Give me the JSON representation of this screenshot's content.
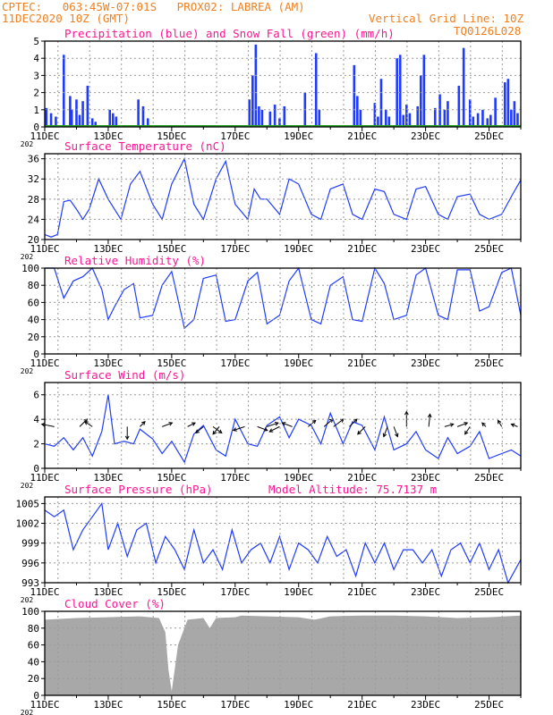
{
  "header": {
    "line1_left": "CPTEC:   063:45W-07:01S   PROX02: LABREA (AM)",
    "line2_left": "11DEC2020 10Z (GMT)",
    "line2_right": "Vertical Grid Line: 10Z",
    "line3_right": "TQ0126L028"
  },
  "colors": {
    "title": "#ff1493",
    "line": "#1f3bff",
    "bar": "#1f3bff",
    "snow": "#22a022",
    "cloud": "#a8a8a8",
    "header": "#f08020"
  },
  "x_axis": {
    "labels": [
      "11DEC",
      "13DEC",
      "15DEC",
      "17DEC",
      "19DEC",
      "21DEC",
      "23DEC",
      "25DEC"
    ],
    "year_stub": "202"
  },
  "chart_data": [
    {
      "type": "bar",
      "title": "Precipitation (blue) and Snow Fall (green) (mm/h)",
      "yticks": [
        "0",
        "1",
        "2",
        "3",
        "4",
        "5"
      ],
      "ylim": [
        0,
        5
      ],
      "series": [
        {
          "name": "Precipitation (blue)",
          "x": [
            0.05,
            0.2,
            0.35,
            0.6,
            0.8,
            0.85,
            1.0,
            1.1,
            1.2,
            1.35,
            1.5,
            1.6,
            2.05,
            2.15,
            2.25,
            2.95,
            3.1,
            3.25,
            6.45,
            6.55,
            6.65,
            6.75,
            6.85,
            7.1,
            7.25,
            7.4,
            7.55,
            8.2,
            8.55,
            8.65,
            9.75,
            9.85,
            9.95,
            10.4,
            10.5,
            10.6,
            10.75,
            10.85,
            11.1,
            11.2,
            11.3,
            11.4,
            11.5,
            11.75,
            11.85,
            11.95,
            12.3,
            12.45,
            12.6,
            12.7,
            13.05,
            13.2,
            13.4,
            13.5,
            13.65,
            13.8,
            13.95,
            14.05,
            14.2,
            14.5,
            14.6,
            14.7,
            14.8,
            14.9
          ],
          "values": [
            1.1,
            0.8,
            0.6,
            4.2,
            1.8,
            1.0,
            1.6,
            0.7,
            1.5,
            2.4,
            0.5,
            0.3,
            1.0,
            0.8,
            0.6,
            1.6,
            1.2,
            0.5,
            1.6,
            3.0,
            4.8,
            1.2,
            1.0,
            0.9,
            1.3,
            0.5,
            1.2,
            2.0,
            4.3,
            1.0,
            3.6,
            1.8,
            1.0,
            1.4,
            0.6,
            2.8,
            1.0,
            0.6,
            4.0,
            4.2,
            0.7,
            1.3,
            0.8,
            1.2,
            3.0,
            4.2,
            1.1,
            1.9,
            1.0,
            1.5,
            2.4,
            4.6,
            1.6,
            0.6,
            0.8,
            1.0,
            0.5,
            0.7,
            1.7,
            2.6,
            2.8,
            1.0,
            1.5,
            0.8
          ]
        },
        {
          "name": "Snow Fall (green)",
          "x": [
            0,
            15
          ],
          "values": [
            0,
            0
          ]
        }
      ]
    },
    {
      "type": "line",
      "title": "Surface Temperature (nC)",
      "yticks": [
        "20",
        "24",
        "28",
        "32",
        "36"
      ],
      "ylim": [
        20,
        37
      ],
      "x": [
        0,
        0.2,
        0.4,
        0.6,
        0.8,
        1,
        1.2,
        1.4,
        1.7,
        2,
        2.4,
        2.7,
        3,
        3.4,
        3.7,
        4,
        4.4,
        4.7,
        5,
        5.4,
        5.7,
        6,
        6.4,
        6.6,
        6.8,
        7,
        7.4,
        7.7,
        8,
        8.4,
        8.7,
        9,
        9.4,
        9.7,
        10,
        10.4,
        10.7,
        11,
        11.4,
        11.7,
        12,
        12.4,
        12.7,
        13,
        13.4,
        13.7,
        14,
        14.4,
        14.7,
        15
      ],
      "values": [
        21,
        20.5,
        21,
        27.5,
        27.8,
        26,
        24,
        26,
        32,
        28,
        24,
        31,
        33.5,
        27,
        24,
        31,
        36,
        27,
        24,
        32,
        35.5,
        27,
        24,
        30,
        28,
        28,
        25,
        32,
        31,
        25,
        24,
        30,
        31,
        25,
        24,
        30,
        29.5,
        25,
        24,
        30,
        30.5,
        25,
        24,
        28.5,
        29,
        25,
        24,
        25,
        28.5,
        31.8
      ]
    },
    {
      "type": "line",
      "title": "Relative Humidity (%)",
      "yticks": [
        "0",
        "20",
        "40",
        "60",
        "80",
        "100"
      ],
      "ylim": [
        0,
        100
      ],
      "x": [
        0,
        0.3,
        0.6,
        0.9,
        1.2,
        1.5,
        1.8,
        2,
        2.2,
        2.5,
        2.8,
        3,
        3.4,
        3.7,
        4,
        4.4,
        4.7,
        5,
        5.4,
        5.7,
        6,
        6.4,
        6.7,
        7,
        7.4,
        7.7,
        8,
        8.4,
        8.7,
        9,
        9.4,
        9.7,
        10,
        10.4,
        10.7,
        11,
        11.4,
        11.7,
        12,
        12.4,
        12.7,
        13,
        13.4,
        13.7,
        14,
        14.4,
        14.7,
        15
      ],
      "values": [
        100,
        100,
        65,
        85,
        90,
        100,
        75,
        40,
        55,
        75,
        82,
        42,
        45,
        80,
        96,
        30,
        40,
        88,
        92,
        38,
        40,
        85,
        95,
        35,
        45,
        85,
        100,
        40,
        35,
        80,
        90,
        40,
        38,
        100,
        82,
        40,
        45,
        92,
        100,
        45,
        40,
        98,
        98,
        50,
        55,
        95,
        100,
        45
      ]
    },
    {
      "type": "line",
      "title": "Surface Wind (m/s)",
      "yticks": [
        "0",
        "2",
        "4",
        "6"
      ],
      "ylim": [
        0,
        7
      ],
      "x": [
        0,
        0.3,
        0.6,
        0.9,
        1.2,
        1.5,
        1.8,
        2,
        2.2,
        2.5,
        2.8,
        3,
        3.4,
        3.7,
        4,
        4.4,
        4.7,
        5,
        5.4,
        5.7,
        6,
        6.4,
        6.7,
        7,
        7.4,
        7.7,
        8,
        8.4,
        8.7,
        9,
        9.4,
        9.7,
        10,
        10.4,
        10.7,
        11,
        11.4,
        11.7,
        12,
        12.4,
        12.7,
        13,
        13.4,
        13.7,
        14,
        14.4,
        14.7,
        15
      ],
      "values": [
        2,
        1.8,
        2.5,
        1.5,
        2.5,
        1,
        3,
        6,
        2,
        2.2,
        2,
        3.2,
        2.4,
        1.2,
        2.2,
        0.5,
        2.8,
        3.5,
        1.5,
        1,
        4,
        2,
        1.8,
        3.5,
        4.2,
        2.5,
        4,
        3.5,
        2,
        4.5,
        2,
        3.8,
        3.5,
        1.5,
        4.2,
        1.5,
        2,
        3,
        1.5,
        0.8,
        2.5,
        1.2,
        1.8,
        3,
        0.8,
        1.2,
        1.5,
        1
      ],
      "arrows": {
        "x": [
          0.3,
          1.1,
          1.5,
          2.6,
          3.0,
          3.7,
          4.5,
          5.0,
          5.3,
          5.5,
          6.3,
          6.7,
          7.0,
          7.4,
          7.8,
          8.3,
          8.8,
          9.1,
          9.6,
          10.1,
          10.8,
          11.0,
          11.4,
          12.1,
          12.6,
          13.0,
          13.4,
          13.9,
          14.4,
          14.9
        ],
        "u": [
          -1,
          0.6,
          -0.6,
          0,
          0.4,
          0.8,
          0.6,
          -0.6,
          0.7,
          -0.5,
          -0.9,
          0.8,
          0.9,
          -0.8,
          -0.8,
          0.6,
          0.7,
          0.8,
          0.6,
          -0.6,
          -0.3,
          0.3,
          0,
          0.1,
          0.7,
          0.8,
          -0.4,
          -0.3,
          -0.3,
          -0.5
        ],
        "v": [
          0.2,
          0.6,
          0.4,
          -1,
          0.4,
          0.3,
          0.3,
          -0.5,
          -0.5,
          -0.6,
          -0.3,
          -0.3,
          0.3,
          -0.4,
          0.3,
          0.5,
          0.6,
          0.6,
          0.6,
          -0.6,
          -0.8,
          -0.8,
          1.2,
          1,
          0.2,
          0.3,
          -0.6,
          0.3,
          0.5,
          0.2
        ]
      }
    },
    {
      "type": "line",
      "title": "Surface Pressure (hPa)",
      "annotation": "Model Altitude: 75.7137 m",
      "yticks": [
        "993",
        "996",
        "999",
        "1002",
        "1005"
      ],
      "ylim": [
        993,
        1006
      ],
      "x": [
        0,
        0.3,
        0.6,
        0.9,
        1.2,
        1.5,
        1.8,
        2,
        2.3,
        2.6,
        2.9,
        3.2,
        3.5,
        3.8,
        4.1,
        4.4,
        4.7,
        5,
        5.3,
        5.6,
        5.9,
        6.2,
        6.5,
        6.8,
        7.1,
        7.4,
        7.7,
        8,
        8.3,
        8.6,
        8.9,
        9.2,
        9.5,
        9.8,
        10.1,
        10.4,
        10.7,
        11,
        11.3,
        11.6,
        11.9,
        12.2,
        12.5,
        12.8,
        13.1,
        13.4,
        13.7,
        14,
        14.3,
        14.6,
        15
      ],
      "values": [
        1004,
        1003,
        1004,
        998,
        1001,
        1003,
        1005,
        998,
        1002,
        997,
        1001,
        1002,
        996,
        1000,
        998,
        995,
        1001,
        996,
        998,
        995,
        1001,
        996,
        998,
        999,
        996,
        1000,
        995,
        999,
        998,
        996,
        1000,
        997,
        998,
        994,
        999,
        996,
        999,
        995,
        998,
        998,
        996,
        998,
        994,
        998,
        999,
        996,
        999,
        995,
        998,
        993,
        996.5
      ]
    },
    {
      "type": "area",
      "title": "Cloud Cover (%)",
      "yticks": [
        "0",
        "20",
        "40",
        "60",
        "80",
        "100"
      ],
      "ylim": [
        0,
        100
      ],
      "x": [
        0,
        1,
        2,
        3,
        3.6,
        3.8,
        3.9,
        4,
        4.2,
        4.5,
        5,
        5.2,
        5.4,
        6,
        6.2,
        7,
        8,
        8.5,
        9,
        10,
        11,
        12,
        13,
        14,
        15
      ],
      "values": [
        90,
        92,
        93,
        94,
        92,
        75,
        30,
        5,
        60,
        90,
        92,
        80,
        92,
        93,
        95,
        94,
        93,
        90,
        94,
        95,
        95,
        94,
        92,
        93,
        95
      ]
    }
  ]
}
